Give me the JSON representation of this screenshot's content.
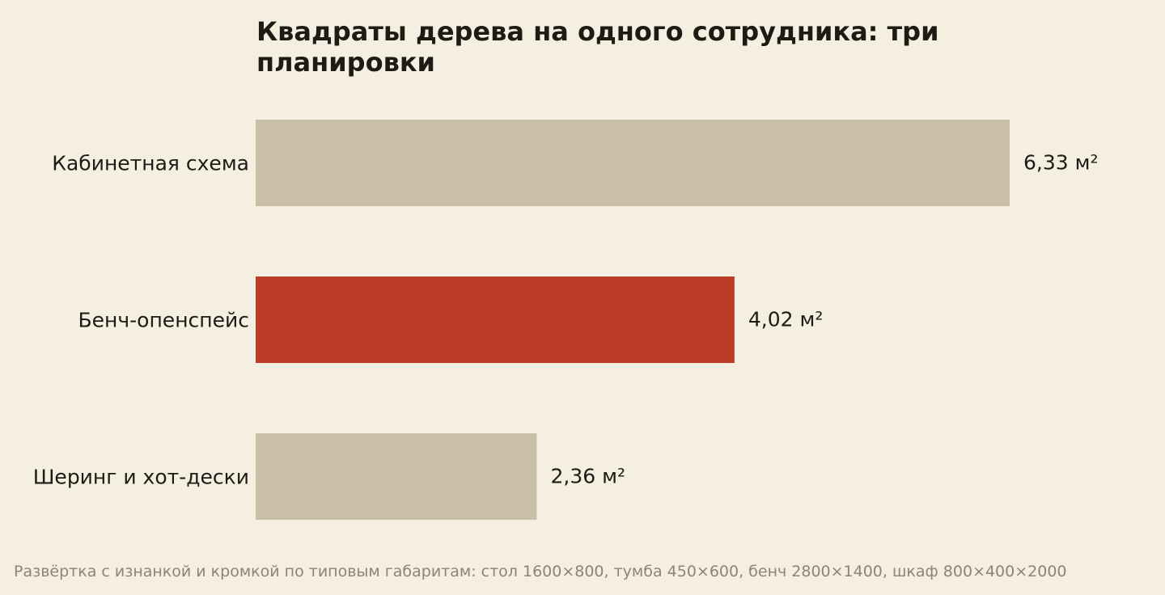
{
  "chart_data": {
    "type": "bar",
    "orientation": "horizontal",
    "title": "Квадраты дерева на одного сотрудника: три планировки",
    "categories": [
      "Кабинетная схема",
      "Бенч-опенспейс",
      "Шеринг и хот-дески"
    ],
    "values": [
      6.33,
      4.02,
      2.36
    ],
    "value_labels": [
      "6,33 м²",
      "4,02 м²",
      "2,36 м²"
    ],
    "xlim": [
      0,
      6.33
    ],
    "grid": false,
    "legend": "none",
    "colors": [
      "#c9bfa7",
      "#bb3d27",
      "#c9bfa7"
    ],
    "highlight": "Бенч-опенспейс"
  },
  "footnote": "Развёртка с изнанкой и кромкой по типовым габаритам: стол 1600×800, тумба 450×600, бенч 2800×1400, шкаф 800×400×2000"
}
